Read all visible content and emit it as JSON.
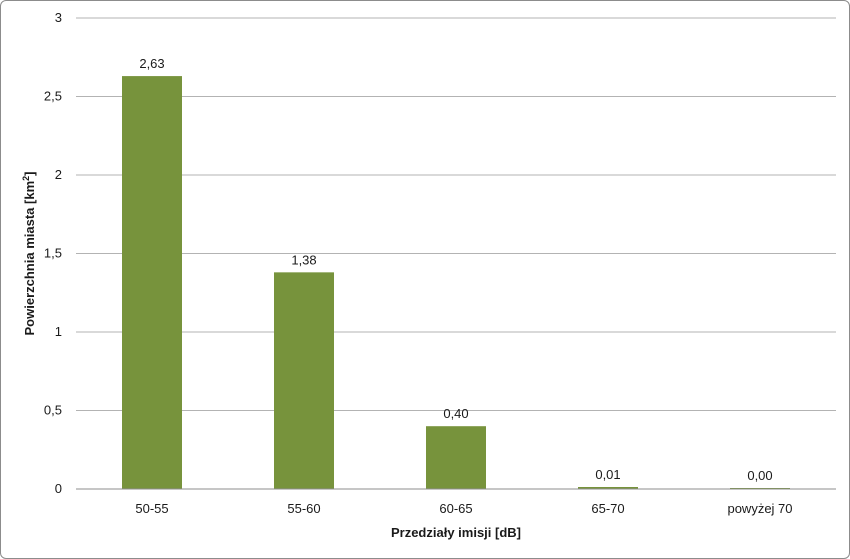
{
  "chart_data": {
    "type": "bar",
    "categories": [
      "50-55",
      "55-60",
      "60-65",
      "65-70",
      "powyżej 70"
    ],
    "values": [
      2.63,
      1.38,
      0.4,
      0.01,
      0.0
    ],
    "data_labels": [
      "2,63",
      "1,38",
      "0,40",
      "0,01",
      "0,00"
    ],
    "title": "",
    "xlabel": "Przedziały imisji [dB]",
    "ylabel_main": "Powierzchnia miasta [km",
    "ylabel_sup": "2",
    "ylabel_end": "]",
    "ylim": [
      0,
      3
    ],
    "yticks": [
      0,
      0.5,
      1,
      1.5,
      2,
      2.5,
      3
    ],
    "ytick_labels": [
      "0",
      "0,5",
      "1",
      "1,5",
      "2",
      "2,5",
      "3"
    ],
    "grid": true,
    "legend": "none",
    "bar_color": "#77933c",
    "grid_color": "#b3b3b3"
  }
}
